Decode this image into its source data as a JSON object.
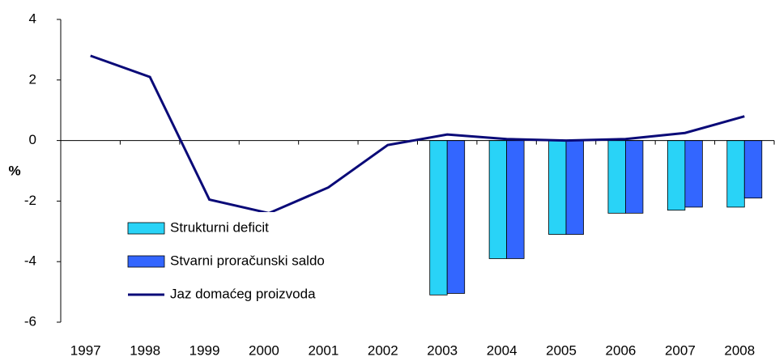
{
  "chart_data": {
    "type": "bar_line",
    "y_label": "%",
    "categories": [
      "1997",
      "1998",
      "1999",
      "2000",
      "2001",
      "2002",
      "2003",
      "2004",
      "2005",
      "2006",
      "2007",
      "2008"
    ],
    "series": [
      {
        "name": "Strukturni deficit",
        "type": "bar",
        "color": "#29d3f7",
        "values": [
          null,
          null,
          null,
          null,
          null,
          null,
          -5.1,
          -3.9,
          -3.1,
          -2.4,
          -2.3,
          -2.2
        ]
      },
      {
        "name": "Stvarni proračunski saldo",
        "type": "bar",
        "color": "#3366ff",
        "values": [
          null,
          null,
          null,
          null,
          null,
          null,
          -5.05,
          -3.9,
          -3.1,
          -2.4,
          -2.2,
          -1.9
        ]
      },
      {
        "name": "Jaz domaćeg proizvoda",
        "type": "line",
        "color": "#0a0a78",
        "values": [
          2.8,
          2.1,
          -1.95,
          -2.4,
          -1.55,
          -0.15,
          0.2,
          0.05,
          0.0,
          0.05,
          0.25,
          0.8
        ]
      }
    ],
    "ylim": [
      -6,
      4
    ],
    "yticks": [
      -6,
      -4,
      -2,
      0,
      2,
      4
    ],
    "legend": "lower-left"
  }
}
